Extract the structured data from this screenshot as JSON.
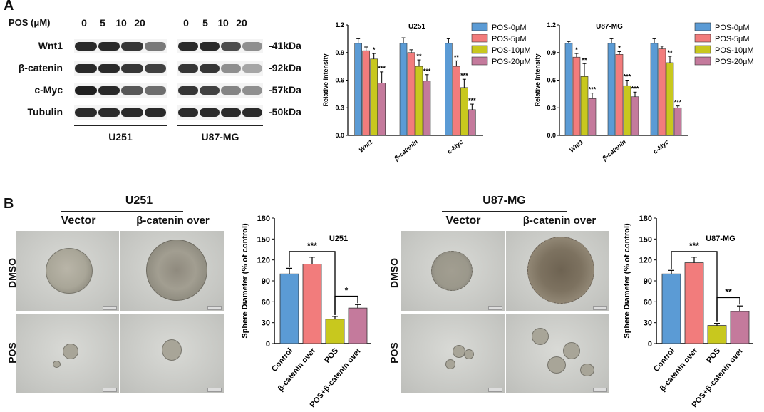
{
  "panel_a": {
    "letter": "A",
    "dose_header": "POS (μM)",
    "doses": [
      "0",
      "5",
      "10",
      "20"
    ],
    "proteins": [
      "Wnt1",
      "β-catenin",
      "c-Myc",
      "Tubulin"
    ],
    "kda": [
      "-41kDa",
      "-92kDa",
      "-57kDa",
      "-50kDa"
    ],
    "cell_lines": [
      "U251",
      "U87-MG"
    ]
  },
  "panel_b": {
    "letter": "B",
    "groups": [
      {
        "title": "U251",
        "columns": [
          "Vector",
          "β-catenin over"
        ],
        "rows": [
          "DMSO",
          "POS"
        ]
      },
      {
        "title": "U87-MG",
        "columns": [
          "Vector",
          "β-catenin over"
        ],
        "rows": [
          "DMSO",
          "POS"
        ]
      }
    ]
  },
  "colors": {
    "blue": "#5b9bd5",
    "red": "#f27c7c",
    "olive": "#c8c81e",
    "mauve": "#c47a9c"
  },
  "chart_data": [
    {
      "type": "bar",
      "title": "U251",
      "ylabel": "Relative Intensity",
      "ylim": [
        0,
        1.2
      ],
      "yticks": [
        "0.0",
        "0.3",
        "0.6",
        "0.9",
        "1.2"
      ],
      "categories": [
        "Wnt1",
        "β-catenin",
        "c-Myc"
      ],
      "series": [
        {
          "name": "POS-0μM",
          "values": [
            1.0,
            1.0,
            1.0
          ],
          "errors": [
            0.05,
            0.06,
            0.05
          ],
          "sig": [
            "",
            "",
            ""
          ]
        },
        {
          "name": "POS-5μM",
          "values": [
            0.92,
            0.9,
            0.75
          ],
          "errors": [
            0.04,
            0.03,
            0.06
          ],
          "sig": [
            "",
            "",
            "**"
          ]
        },
        {
          "name": "POS-10μM",
          "values": [
            0.83,
            0.75,
            0.52
          ],
          "errors": [
            0.06,
            0.07,
            0.09
          ],
          "sig": [
            "*",
            "**",
            "***"
          ]
        },
        {
          "name": "POS-20μM",
          "values": [
            0.57,
            0.59,
            0.28
          ],
          "errors": [
            0.12,
            0.07,
            0.06
          ],
          "sig": [
            "***",
            "***",
            "***"
          ]
        }
      ]
    },
    {
      "type": "bar",
      "title": "U87-MG",
      "ylabel": "Relative Intensity",
      "ylim": [
        0,
        1.2
      ],
      "yticks": [
        "0.0",
        "0.3",
        "0.6",
        "0.9",
        "1.2"
      ],
      "categories": [
        "Wnt1",
        "β-catenin",
        "c-Myc"
      ],
      "series": [
        {
          "name": "POS-0μM",
          "values": [
            1.0,
            1.0,
            1.0
          ],
          "errors": [
            0.02,
            0.05,
            0.05
          ],
          "sig": [
            "",
            "",
            ""
          ]
        },
        {
          "name": "POS-5μM",
          "values": [
            0.85,
            0.88,
            0.94
          ],
          "errors": [
            0.04,
            0.03,
            0.03
          ],
          "sig": [
            "*",
            "*",
            ""
          ]
        },
        {
          "name": "POS-10μM",
          "values": [
            0.64,
            0.54,
            0.79
          ],
          "errors": [
            0.14,
            0.06,
            0.07
          ],
          "sig": [
            "**",
            "***",
            "**"
          ]
        },
        {
          "name": "POS-20μM",
          "values": [
            0.4,
            0.42,
            0.3
          ],
          "errors": [
            0.06,
            0.05,
            0.02
          ],
          "sig": [
            "***",
            "***",
            "***"
          ]
        }
      ]
    },
    {
      "type": "bar",
      "title": "U251",
      "ylabel": "Sphere Diameter (% of control)",
      "ylim": [
        0,
        180
      ],
      "yticks": [
        "0",
        "30",
        "60",
        "90",
        "120",
        "150",
        "180"
      ],
      "categories": [
        "Control",
        "β-catenin over",
        "POS",
        "POS+β-catenin over"
      ],
      "values": [
        100,
        114,
        35,
        51
      ],
      "errors": [
        8,
        10,
        4,
        5
      ],
      "brackets": [
        {
          "from": 0,
          "to": 2,
          "label": "***"
        },
        {
          "from": 2,
          "to": 3,
          "label": "*"
        }
      ]
    },
    {
      "type": "bar",
      "title": "U87-MG",
      "ylabel": "Sphere Diameter (% of control)",
      "ylim": [
        0,
        180
      ],
      "yticks": [
        "0",
        "30",
        "60",
        "90",
        "120",
        "150",
        "180"
      ],
      "categories": [
        "Control",
        "β-catenin over",
        "POS",
        "POS+β-catenin over"
      ],
      "values": [
        100,
        116,
        26,
        46
      ],
      "errors": [
        5,
        8,
        3,
        8
      ],
      "brackets": [
        {
          "from": 0,
          "to": 2,
          "label": "***"
        },
        {
          "from": 2,
          "to": 3,
          "label": "**"
        }
      ]
    }
  ]
}
